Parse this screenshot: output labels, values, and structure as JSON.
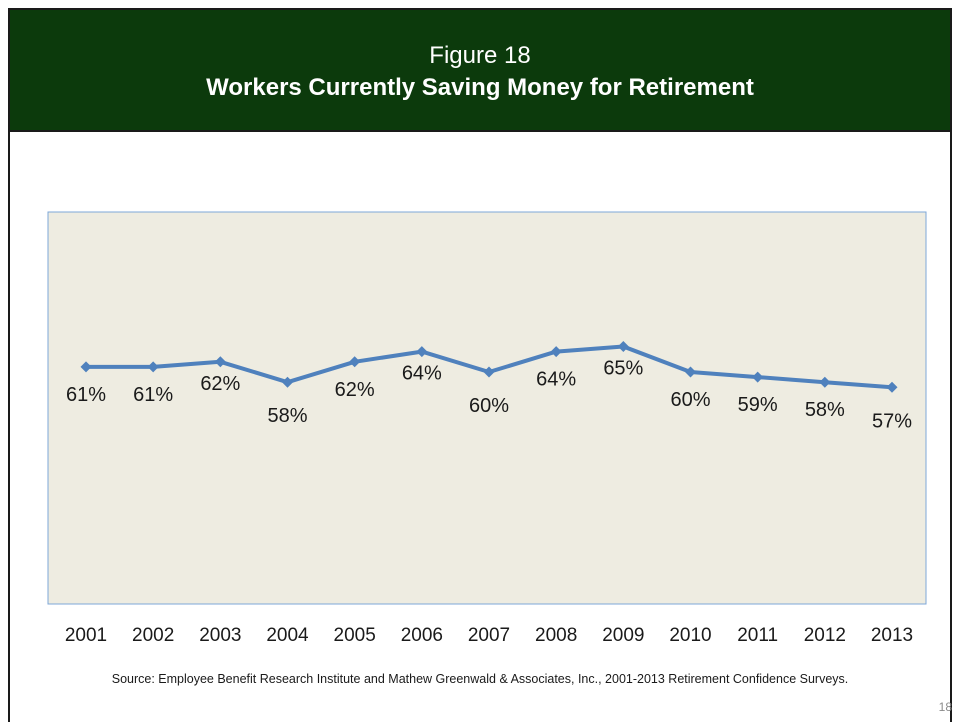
{
  "header": {
    "figure_label": "Figure 18",
    "title": "Workers Currently Saving Money for Retirement"
  },
  "chart_data": {
    "type": "line",
    "categories": [
      "2001",
      "2002",
      "2003",
      "2004",
      "2005",
      "2006",
      "2007",
      "2008",
      "2009",
      "2010",
      "2011",
      "2012",
      "2013"
    ],
    "series": [
      {
        "values": [
          61,
          61,
          62,
          58,
          62,
          64,
          60,
          64,
          65,
          60,
          59,
          58,
          57
        ]
      }
    ],
    "data_labels": [
      "61%",
      "61%",
      "62%",
      "58%",
      "62%",
      "64%",
      "60%",
      "64%",
      "65%",
      "60%",
      "59%",
      "58%",
      "57%"
    ],
    "ylim": [
      0,
      100
    ],
    "grid": false,
    "legend": "none",
    "colors": {
      "line": "#4f81bd",
      "plot_bg": "#eeece1",
      "plot_border": "#7da7d8"
    }
  },
  "source": "Source:  Employee Benefit Research Institute and Mathew Greenwald & Associates, Inc., 2001-2013 Retirement Confidence Surveys.",
  "page_number": "18"
}
